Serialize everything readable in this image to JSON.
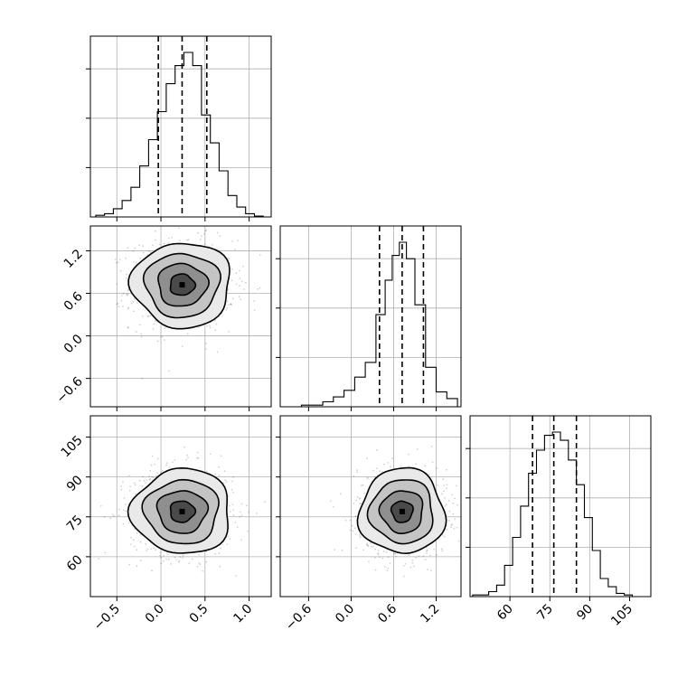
{
  "chart_data": {
    "type": "corner",
    "parameters": [
      {
        "ticks": [
          -0.5,
          0.0,
          0.5,
          1.0
        ],
        "tick_labels": [
          "−0.5",
          "0.0",
          "0.5",
          "1.0"
        ],
        "range": [
          -0.8,
          1.25
        ],
        "mean": 0.24,
        "sigma": 0.28,
        "quantiles": [
          -0.03,
          0.24,
          0.52
        ],
        "hist_bins": [
          -0.74,
          -0.64,
          -0.54,
          -0.44,
          -0.34,
          -0.24,
          -0.14,
          -0.04,
          0.06,
          0.16,
          0.26,
          0.36,
          0.46,
          0.56,
          0.66,
          0.76,
          0.86,
          0.96,
          1.06,
          1.16
        ],
        "hist_values": [
          1,
          2,
          5,
          10,
          18,
          31,
          47,
          64,
          81,
          92,
          100,
          92,
          62,
          45,
          28,
          13,
          6,
          2,
          0.5
        ]
      },
      {
        "ticks": [
          -0.6,
          0.0,
          0.6,
          1.2
        ],
        "tick_labels": [
          "−0.6",
          "0.0",
          "0.6",
          "1.2"
        ],
        "range": [
          -1.0,
          1.55
        ],
        "mean": 0.72,
        "sigma": 0.3,
        "quantiles": [
          0.4,
          0.72,
          1.02
        ],
        "hist_bins": [
          -0.7,
          -0.55,
          -0.4,
          -0.25,
          -0.1,
          0.05,
          0.2,
          0.35,
          0.48,
          0.58,
          0.68,
          0.78,
          0.9,
          1.05,
          1.2,
          1.35,
          1.5
        ],
        "hist_values": [
          1,
          1,
          3,
          6,
          10,
          18,
          27,
          56,
          77,
          92,
          100,
          90,
          62,
          24,
          9,
          5
        ]
      },
      {
        "ticks": [
          60,
          75,
          90,
          105
        ],
        "tick_labels": [
          "60",
          "75",
          "90",
          "105"
        ],
        "range": [
          45,
          113
        ],
        "mean": 77,
        "sigma": 8,
        "quantiles": [
          68.5,
          76.5,
          85
        ],
        "hist_bins": [
          46,
          49,
          52,
          55,
          58,
          61,
          64,
          67,
          70,
          73,
          76,
          79,
          82,
          85,
          88,
          91,
          94,
          97,
          100,
          103,
          106
        ],
        "hist_values": [
          1,
          1,
          3,
          7,
          19,
          36,
          55,
          75,
          89,
          98,
          100,
          95,
          83,
          68,
          48,
          28,
          11,
          6,
          2,
          1
        ]
      }
    ],
    "contour_levels_sigma": [
      0.5,
      1.0,
      1.5,
      2.0
    ],
    "grid": true,
    "title": "",
    "xlabel": "",
    "ylabel": ""
  }
}
